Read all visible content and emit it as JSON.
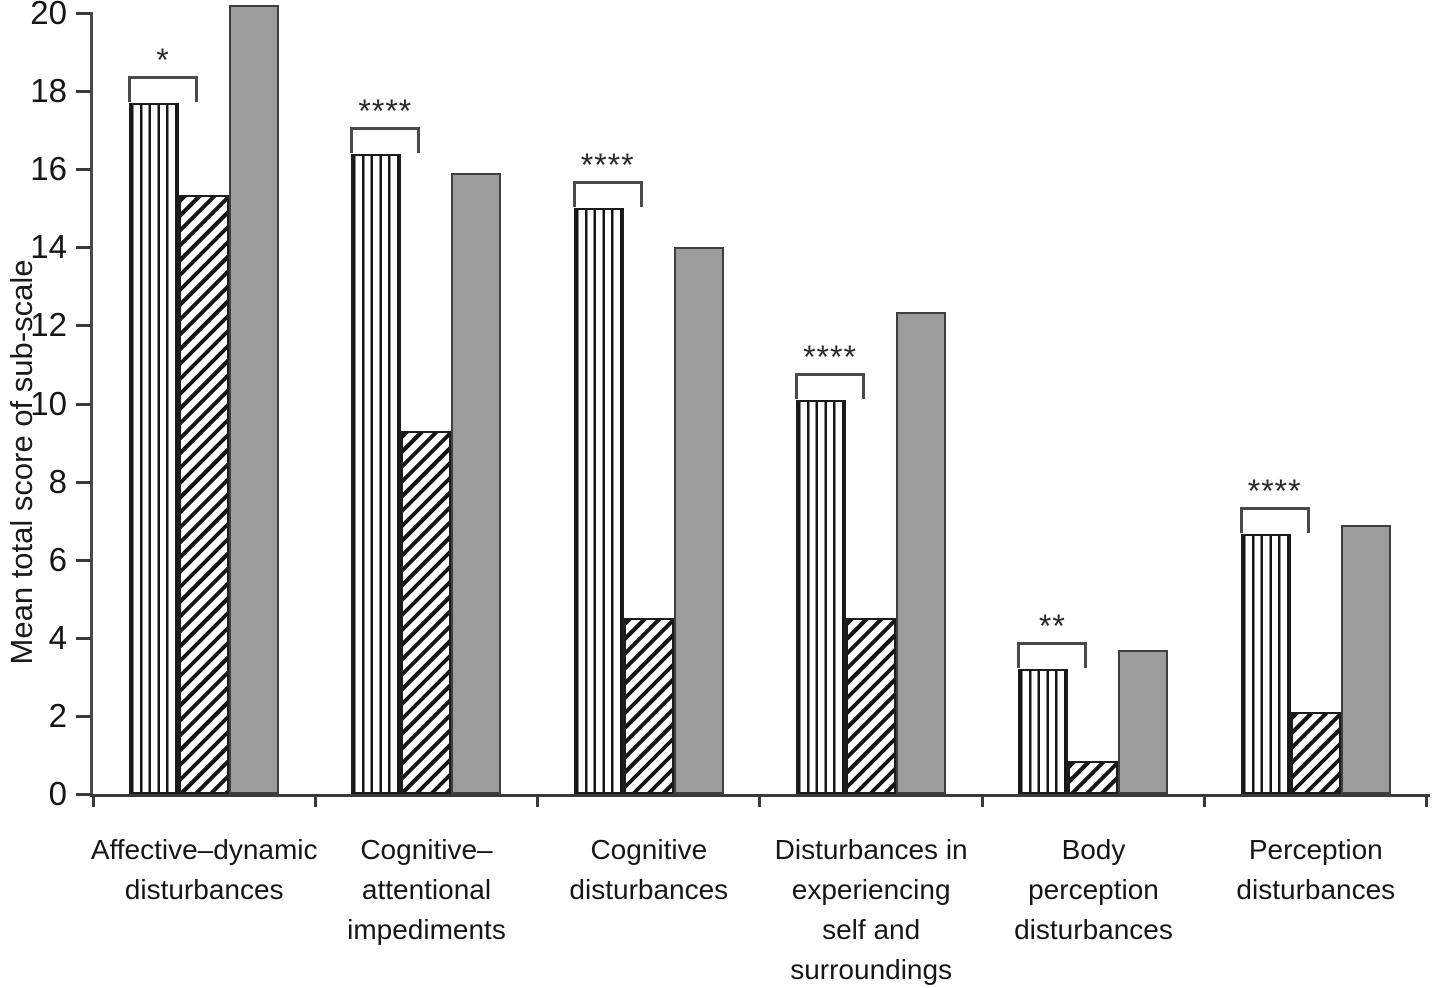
{
  "figure": {
    "background": "#ffffff",
    "colors": {
      "solid_bar_fill": "#9c9c9c",
      "stripe_color": "#151515",
      "axis_color": "#3a3a3a",
      "text_color": "#161616"
    }
  },
  "chart_data": {
    "type": "bar",
    "title": "",
    "xlabel": "",
    "ylabel": "Mean total score of sub-scale",
    "ylim": [
      0,
      20.3
    ],
    "yticks": [
      0,
      2,
      4,
      6,
      8,
      10,
      12,
      14,
      16,
      18,
      20
    ],
    "grid": false,
    "legend": null,
    "categories": [
      "Affective–dynamic disturbances",
      "Cognitive–attentional impediments",
      "Cognitive disturbances",
      "Disturbances in experiencing self and surroundings",
      "Body perception disturbances",
      "Perception disturbances"
    ],
    "category_lines": [
      [
        "Affective–dynamic",
        "disturbances"
      ],
      [
        "Cognitive–",
        "attentional",
        "impediments"
      ],
      [
        "Cognitive",
        "disturbances"
      ],
      [
        "Disturbances in",
        "experiencing",
        "self and",
        "surroundings"
      ],
      [
        "Body",
        "perception",
        "disturbances"
      ],
      [
        "Perception",
        "disturbances"
      ]
    ],
    "series": [
      {
        "name": "vertical-striped",
        "pattern": "vertical-stripes",
        "values": [
          17.7,
          16.4,
          15.0,
          10.1,
          3.2,
          6.65
        ]
      },
      {
        "name": "diagonal-striped",
        "pattern": "diagonal-stripes",
        "values": [
          15.35,
          9.3,
          4.5,
          4.5,
          0.85,
          2.1
        ]
      },
      {
        "name": "solid-grey",
        "pattern": "solid",
        "fill": "#9c9c9c",
        "values": [
          20.2,
          15.9,
          14.0,
          12.35,
          3.7,
          6.9
        ]
      }
    ],
    "significance": [
      "*",
      "****",
      "****",
      "****",
      "**",
      "****"
    ],
    "significance_between": [
      "vertical-striped",
      "diagonal-striped"
    ]
  }
}
